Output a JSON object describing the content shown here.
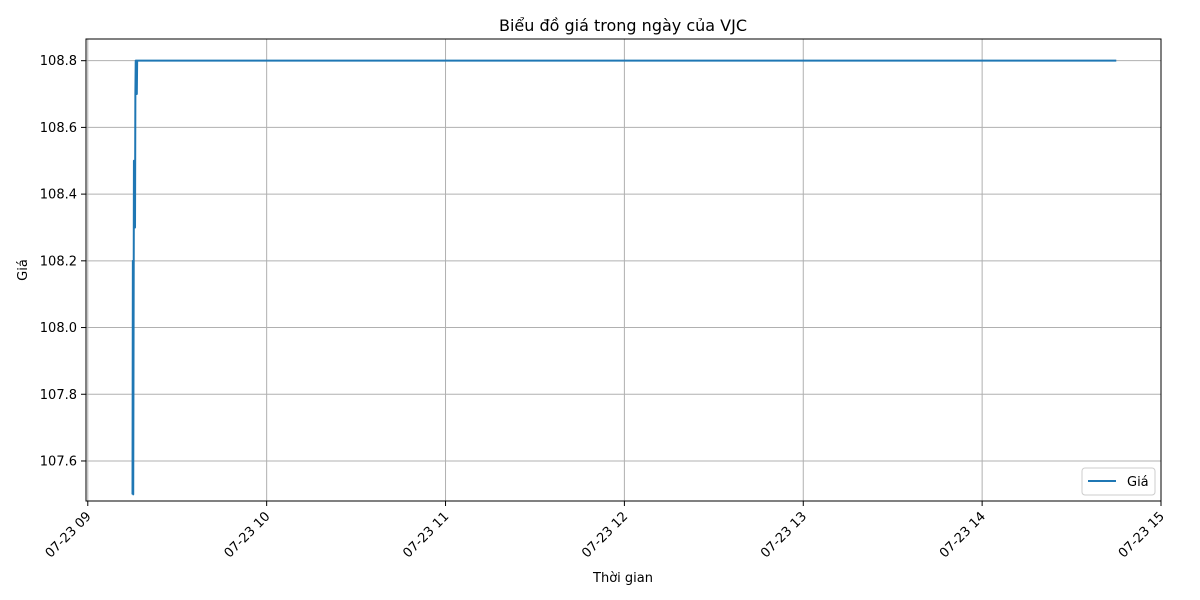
{
  "chart_data": {
    "type": "line",
    "title": "Biểu đồ giá trong ngày của VJC",
    "xlabel": "Thời gian",
    "ylabel": "Giá",
    "x_tick_labels": [
      "07-23 09",
      "07-23 10",
      "07-23 11",
      "07-23 12",
      "07-23 13",
      "07-23 14",
      "07-23 15"
    ],
    "x_tick_hours": [
      9,
      10,
      11,
      12,
      13,
      14,
      15
    ],
    "y_ticks": [
      107.6,
      107.8,
      108.0,
      108.2,
      108.4,
      108.6,
      108.8
    ],
    "y_tick_labels": [
      "107.6",
      "107.8",
      "108.0",
      "108.2",
      "108.4",
      "108.6",
      "108.8"
    ],
    "xlim_hours": [
      8.99,
      15.0
    ],
    "ylim": [
      107.48,
      108.865
    ],
    "grid": true,
    "legend": {
      "position": "lower-right",
      "entries": [
        "Giá"
      ]
    },
    "colors": {
      "series": "#1f77b4",
      "grid": "#b0b0b0",
      "axes": "#000000"
    },
    "series": [
      {
        "name": "Giá",
        "x_hours": [
          9.25,
          9.252,
          9.254,
          9.256,
          9.258,
          9.26,
          9.262,
          9.264,
          9.266,
          9.268,
          9.27,
          9.272,
          9.274,
          9.276,
          9.28,
          9.285,
          9.29,
          9.3,
          9.4,
          10.0,
          11.0,
          12.0,
          13.0,
          14.0,
          14.75
        ],
        "y": [
          107.5,
          108.2,
          107.5,
          108.0,
          108.5,
          108.3,
          108.5,
          108.3,
          108.7,
          108.8,
          108.7,
          108.8,
          108.7,
          108.8,
          108.8,
          108.8,
          108.8,
          108.8,
          108.8,
          108.8,
          108.8,
          108.8,
          108.8,
          108.8,
          108.8
        ]
      }
    ]
  }
}
